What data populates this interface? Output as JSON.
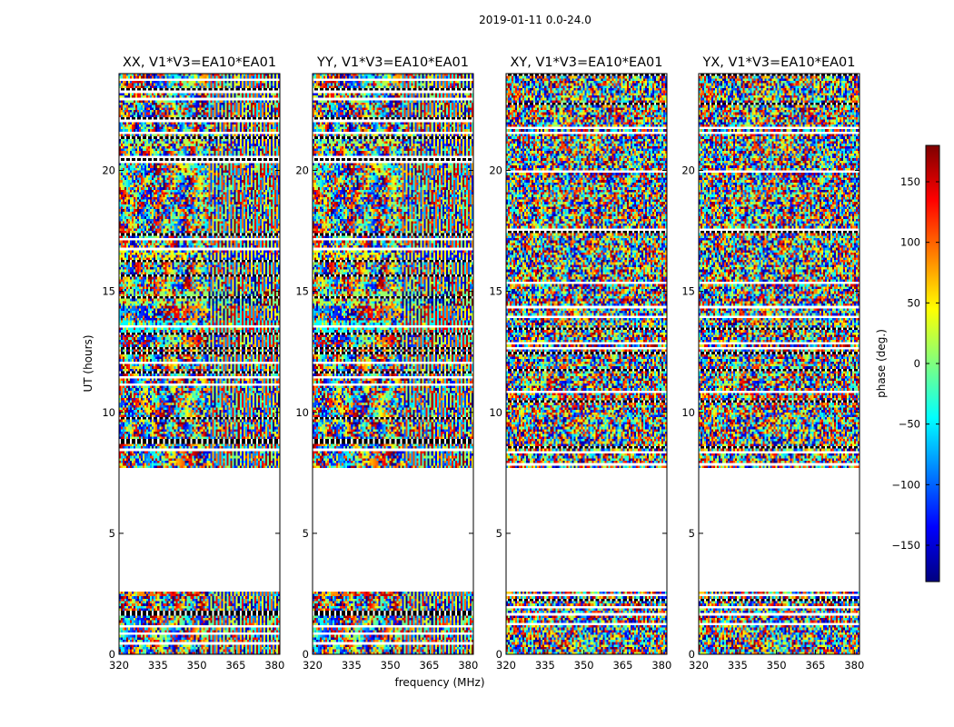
{
  "chart_data": {
    "type": "heatmap",
    "title": "2019-01-11 0.0-24.0",
    "xlabel": "frequency (MHz)",
    "ylabel": "UT (hours)",
    "xlim": [
      320,
      382
    ],
    "ylim": [
      0,
      24
    ],
    "x_ticks": [
      320,
      335,
      350,
      365,
      380
    ],
    "y_ticks": [
      0,
      5,
      10,
      15,
      20
    ],
    "colorbar": {
      "label": "phase (deg.)",
      "range": [
        -180,
        180
      ],
      "ticks": [
        150,
        100,
        50,
        0,
        -50,
        -100,
        -150
      ],
      "tick_labels": [
        "150",
        "100",
        "50",
        "0",
        "−50",
        "−100",
        "−150"
      ],
      "colormap": "jet"
    },
    "data_gap_ut": [
      2.7,
      7.7
    ],
    "panels": [
      {
        "title": "XX, V1*V3=EA10*EA01",
        "polarization": "XX"
      },
      {
        "title": "YY, V1*V3=EA10*EA01",
        "polarization": "YY"
      },
      {
        "title": "XY, V1*V3=EA10*EA01",
        "polarization": "XY"
      },
      {
        "title": "YX, V1*V3=EA10*EA01",
        "polarization": "YX"
      }
    ]
  },
  "colors": {
    "axis": "#000000",
    "background": "#ffffff",
    "jet": [
      "#00007f",
      "#0000ff",
      "#007fff",
      "#00ffff",
      "#7fff7f",
      "#ffff00",
      "#ff7f00",
      "#ff0000",
      "#7f0000"
    ]
  }
}
